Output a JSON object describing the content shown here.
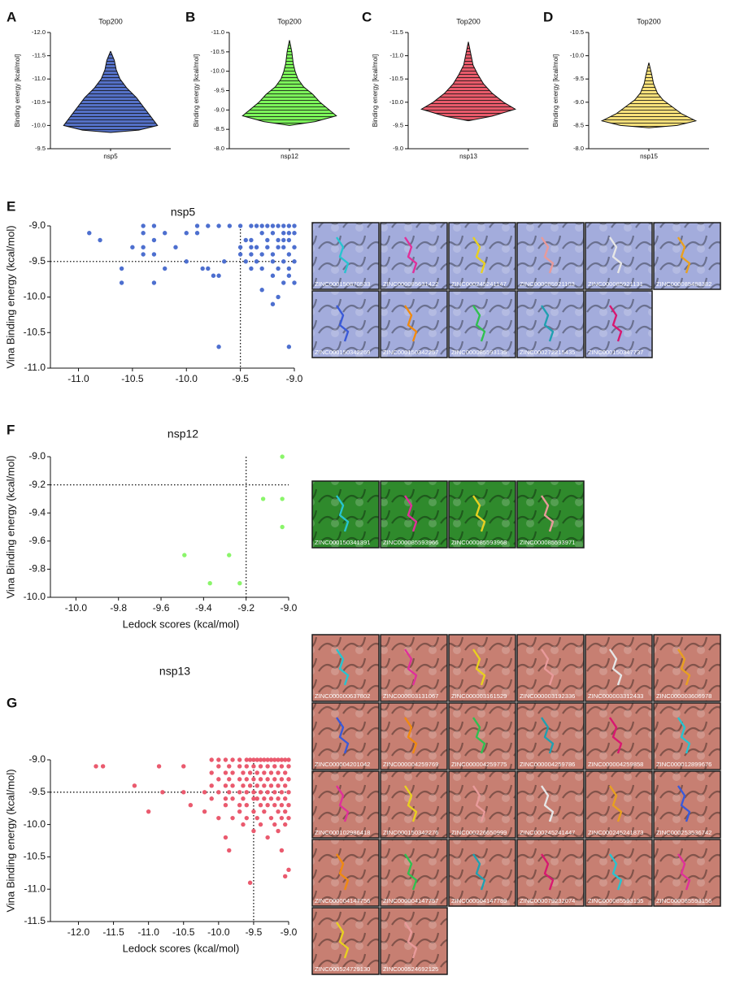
{
  "chart_data": [
    {
      "type": "violin",
      "panel": "A",
      "title": "Top200",
      "ylabel": "Binding energy [kcal/mol]",
      "categories": [
        "nsp5"
      ],
      "color": "#5470c6",
      "levels": [
        -9.85,
        -9.9,
        -10.0,
        -10.2,
        -10.4,
        -10.6,
        -10.8,
        -11.0,
        -11.2,
        -11.4,
        -11.6
      ],
      "density": [
        0,
        0.6,
        1.0,
        0.85,
        0.7,
        0.55,
        0.35,
        0.2,
        0.12,
        0.08,
        0
      ],
      "ylim": [
        -9.5,
        -12
      ],
      "yticks": [
        {
          "value": -12,
          "label": "-12.0"
        },
        -11.5,
        {
          "value": -11,
          "label": "-11.0"
        },
        -10.5,
        {
          "value": -10,
          "label": "-10.0"
        },
        -9.5
      ]
    },
    {
      "type": "violin",
      "panel": "B",
      "title": "Top200",
      "ylabel": "Binding energy [kcal/mol]",
      "categories": [
        "nsp12"
      ],
      "color": "#7cf55a",
      "levels": [
        -8.6,
        -8.7,
        -8.85,
        -9.0,
        -9.2,
        -9.4,
        -9.6,
        -9.8,
        -10.0,
        -10.2,
        -10.5,
        -10.8
      ],
      "density": [
        0,
        0.55,
        1.0,
        0.85,
        0.65,
        0.5,
        0.3,
        0.18,
        0.12,
        0.08,
        0.05,
        0
      ],
      "ylim": [
        -8,
        -11
      ],
      "yticks": [
        {
          "value": -11,
          "label": "-11.0"
        },
        -10.5,
        {
          "value": -10,
          "label": "-10.0"
        },
        -9.5,
        {
          "value": -9,
          "label": "-9.0"
        },
        -8.5,
        {
          "value": -8,
          "label": "-8.0"
        }
      ]
    },
    {
      "type": "violin",
      "panel": "C",
      "title": "Top200",
      "ylabel": "Binding energy [kcal/mol]",
      "categories": [
        "nsp13"
      ],
      "color": "#e85a6a",
      "levels": [
        -9.6,
        -9.7,
        -9.85,
        -10.0,
        -10.2,
        -10.4,
        -10.6,
        -10.8,
        -11.0,
        -11.3
      ],
      "density": [
        0,
        0.5,
        1.0,
        0.75,
        0.5,
        0.32,
        0.2,
        0.1,
        0.06,
        0
      ],
      "ylim": [
        -9,
        -11.5
      ],
      "yticks": [
        -11.5,
        {
          "value": -11,
          "label": "-11.0"
        },
        -10.5,
        {
          "value": -10,
          "label": "-10.0"
        },
        -9.5,
        {
          "value": -9,
          "label": "-9.0"
        }
      ]
    },
    {
      "type": "violin",
      "panel": "D",
      "title": "Top200",
      "ylabel": "Binding energy [kcal/mol]",
      "categories": [
        "nsp15"
      ],
      "color": "#f7e07a",
      "levels": [
        -8.45,
        -8.5,
        -8.6,
        -8.75,
        -8.9,
        -9.05,
        -9.2,
        -9.4,
        -9.6,
        -9.85
      ],
      "density": [
        0,
        0.6,
        1.0,
        0.7,
        0.5,
        0.3,
        0.18,
        0.1,
        0.06,
        0
      ],
      "ylim": [
        -8,
        -10.5
      ],
      "yticks": [
        -10.5,
        {
          "value": -10,
          "label": "-10.0"
        },
        -9.5,
        {
          "value": -9,
          "label": "-9.0"
        },
        -8.5,
        {
          "value": -8,
          "label": "-8.0"
        }
      ]
    },
    {
      "type": "scatter",
      "panel": "E",
      "title": "nsp5",
      "ylabel": "Vina Binding energy (kcal/mol)",
      "color": "#4d6fcf",
      "xlim": [
        -11.26,
        -9
      ],
      "ylim": [
        -11,
        -9
      ],
      "hline": -9.5,
      "vline": -9.5,
      "xticks": [
        {
          "value": -11,
          "label": "-11.0"
        },
        -10.5,
        {
          "value": -10,
          "label": "-10.0"
        },
        -9.5,
        {
          "value": -9,
          "label": "-9.0"
        }
      ],
      "yticks": [
        {
          "value": -11,
          "label": "-11.0"
        },
        -10.5,
        {
          "value": -10,
          "label": "-10.0"
        },
        -9.5,
        {
          "value": -9,
          "label": "-9.0"
        }
      ],
      "x": [
        -10.9,
        -10.8,
        -10.6,
        -10.6,
        -10.5,
        -10.4,
        -10.4,
        -10.4,
        -10.4,
        -10.3,
        -10.3,
        -10.3,
        -10.3,
        -10.2,
        -10.2,
        -10.1,
        -10.0,
        -10.0,
        -9.9,
        -9.9,
        -9.85,
        -9.8,
        -9.8,
        -9.75,
        -9.7,
        -9.7,
        -9.7,
        -9.65,
        -9.6,
        -9.5,
        -9.5,
        -9.5,
        -9.45,
        -9.45,
        -9.4,
        -9.4,
        -9.4,
        -9.4,
        -9.4,
        -9.35,
        -9.35,
        -9.35,
        -9.3,
        -9.3,
        -9.3,
        -9.3,
        -9.3,
        -9.25,
        -9.25,
        -9.25,
        -9.2,
        -9.2,
        -9.2,
        -9.2,
        -9.2,
        -9.2,
        -9.15,
        -9.15,
        -9.15,
        -9.15,
        -9.15,
        -9.1,
        -9.1,
        -9.1,
        -9.1,
        -9.1,
        -9.1,
        -9.05,
        -9.05,
        -9.05,
        -9.05,
        -9.05,
        -9.05,
        -9.05,
        -9.0,
        -9.0,
        -9.0,
        -9.0,
        -9.0
      ],
      "values": [
        -9.1,
        -9.2,
        -9.6,
        -9.8,
        -9.3,
        -9.0,
        -9.1,
        -9.3,
        -9.4,
        -9.0,
        -9.2,
        -9.4,
        -9.8,
        -9.1,
        -9.6,
        -9.3,
        -9.1,
        -9.5,
        -9.0,
        -9.1,
        -9.6,
        -9.0,
        -9.6,
        -9.7,
        -9.0,
        -9.7,
        -10.7,
        -9.5,
        -9.0,
        -9.0,
        -9.3,
        -9.4,
        -9.2,
        -9.5,
        -9.0,
        -9.2,
        -9.3,
        -9.4,
        -9.6,
        -9.0,
        -9.3,
        -9.5,
        -9.0,
        -9.1,
        -9.4,
        -9.6,
        -9.9,
        -9.0,
        -9.2,
        -9.3,
        -9.0,
        -9.1,
        -9.4,
        -9.5,
        -9.7,
        -10.1,
        -9.0,
        -9.2,
        -9.3,
        -9.6,
        -10.0,
        -9.0,
        -9.1,
        -9.2,
        -9.3,
        -9.5,
        -9.8,
        -9.0,
        -9.1,
        -9.2,
        -9.4,
        -9.6,
        -9.7,
        -10.7,
        -9.0,
        -9.1,
        -9.3,
        -9.5,
        -9.8
      ]
    },
    {
      "type": "scatter",
      "panel": "F",
      "title": "nsp12",
      "ylabel": "Vina Binding energy (kcal/mol)",
      "xlabel": "Ledock scores (kcal/mol)",
      "color": "#8af56a",
      "xlim": [
        -10.12,
        -9
      ],
      "ylim": [
        -10,
        -9
      ],
      "hline": -9.2,
      "vline": -9.2,
      "xticks": [
        {
          "value": -10,
          "label": "-10.0"
        },
        -9.8,
        -9.6,
        -9.4,
        -9.2,
        {
          "value": -9,
          "label": "-9.0"
        }
      ],
      "yticks": [
        {
          "value": -10,
          "label": "-10.0"
        },
        -9.8,
        -9.6,
        -9.4,
        -9.2,
        {
          "value": -9,
          "label": "-9.0"
        }
      ],
      "x": [
        -9.03,
        -9.12,
        -9.03,
        -9.03,
        -9.49,
        -9.28,
        -9.37,
        -9.23
      ],
      "values": [
        -9.0,
        -9.3,
        -9.3,
        -9.5,
        -9.7,
        -9.7,
        -9.9,
        -9.9
      ]
    },
    {
      "type": "scatter",
      "panel": "G",
      "title": "nsp13",
      "ylabel": "Vina Binding energy (kcal/mol)",
      "xlabel": "Ledock scores (kcal/mol)",
      "color": "#ea5a6e",
      "xlim": [
        -12.4,
        -9
      ],
      "ylim": [
        -11.5,
        -9
      ],
      "hline": -9.5,
      "vline": -9.5,
      "xticks": [
        {
          "value": -12,
          "label": "-12.0"
        },
        -11.5,
        {
          "value": -11,
          "label": "-11.0"
        },
        -10.5,
        {
          "value": -10,
          "label": "-10.0"
        },
        -9.5,
        {
          "value": -9,
          "label": "-9.0"
        }
      ],
      "yticks": [
        -11.5,
        {
          "value": -11,
          "label": "-11.0"
        },
        -10.5,
        {
          "value": -10,
          "label": "-10.0"
        },
        -9.5,
        {
          "value": -9,
          "label": "-9.0"
        }
      ],
      "x": [
        -11.75,
        -11.65,
        -11.2,
        -11.0,
        -10.85,
        -10.8,
        -10.5,
        -10.5,
        -10.4,
        -10.2,
        -10.2,
        -10.1,
        -10.1,
        -10.1,
        -10.1,
        -10.0,
        -10.0,
        -10.0,
        -10.0,
        -10.0,
        -9.9,
        -9.9,
        -9.9,
        -9.9,
        -9.9,
        -9.9,
        -9.85,
        -9.85,
        -9.85,
        -9.85,
        -9.8,
        -9.8,
        -9.8,
        -9.8,
        -9.8,
        -9.7,
        -9.7,
        -9.7,
        -9.7,
        -9.7,
        -9.7,
        -9.65,
        -9.65,
        -9.65,
        -9.65,
        -9.6,
        -9.6,
        -9.6,
        -9.6,
        -9.6,
        -9.6,
        -9.55,
        -9.55,
        -9.55,
        -9.55,
        -9.5,
        -9.5,
        -9.5,
        -9.5,
        -9.5,
        -9.5,
        -9.5,
        -9.45,
        -9.45,
        -9.45,
        -9.45,
        -9.45,
        -9.4,
        -9.4,
        -9.4,
        -9.4,
        -9.4,
        -9.4,
        -9.35,
        -9.35,
        -9.35,
        -9.35,
        -9.35,
        -9.3,
        -9.3,
        -9.3,
        -9.3,
        -9.3,
        -9.3,
        -9.25,
        -9.25,
        -9.25,
        -9.25,
        -9.25,
        -9.2,
        -9.2,
        -9.2,
        -9.2,
        -9.2,
        -9.2,
        -9.15,
        -9.15,
        -9.15,
        -9.15,
        -9.15,
        -9.15,
        -9.1,
        -9.1,
        -9.1,
        -9.1,
        -9.1,
        -9.1,
        -9.1,
        -9.05,
        -9.05,
        -9.05,
        -9.05,
        -9.05,
        -9.05,
        -9.05,
        -9.0,
        -9.0,
        -9.0,
        -9.0,
        -9.0,
        -9.0,
        -9.0
      ],
      "values": [
        -9.1,
        -9.1,
        -9.4,
        -9.8,
        -9.1,
        -9.5,
        -9.1,
        -9.5,
        -9.7,
        -9.5,
        -9.8,
        -9.0,
        -9.2,
        -9.4,
        -9.6,
        -9.0,
        -9.1,
        -9.3,
        -9.5,
        -9.9,
        -9.0,
        -9.2,
        -9.4,
        -9.6,
        -9.7,
        -10.2,
        -9.1,
        -9.3,
        -9.5,
        -10.4,
        -9.0,
        -9.2,
        -9.4,
        -9.6,
        -9.9,
        -9.0,
        -9.1,
        -9.3,
        -9.5,
        -9.7,
        -9.8,
        -9.2,
        -9.4,
        -9.6,
        -10.0,
        -9.0,
        -9.1,
        -9.3,
        -9.5,
        -9.7,
        -9.9,
        -9.0,
        -9.2,
        -9.4,
        -10.9,
        -9.0,
        -9.1,
        -9.3,
        -9.5,
        -9.6,
        -9.8,
        -10.1,
        -9.0,
        -9.2,
        -9.4,
        -9.6,
        -9.9,
        -9.0,
        -9.1,
        -9.3,
        -9.5,
        -9.7,
        -10.0,
        -9.0,
        -9.2,
        -9.4,
        -9.6,
        -9.8,
        -9.0,
        -9.1,
        -9.3,
        -9.5,
        -9.7,
        -10.2,
        -9.0,
        -9.2,
        -9.4,
        -9.6,
        -9.9,
        -9.0,
        -9.1,
        -9.3,
        -9.5,
        -9.7,
        -10.0,
        -9.0,
        -9.2,
        -9.4,
        -9.6,
        -9.8,
        -10.1,
        -9.0,
        -9.1,
        -9.3,
        -9.5,
        -9.7,
        -9.9,
        -10.4,
        -9.0,
        -9.2,
        -9.4,
        -9.6,
        -9.8,
        -10.0,
        -10.8,
        -9.0,
        -9.1,
        -9.3,
        -9.5,
        -9.7,
        -9.9,
        -10.7
      ]
    }
  ],
  "galleries": [
    {
      "color": "#a3acdc",
      "labels": [
        "ZINC000150870533",
        "ZINC000085631422",
        "ZINC000245241147",
        "ZINC000085921103",
        "ZINC000085921131",
        "ZINC000085488382",
        "ZINC000150342269",
        "ZINC000150342257",
        "ZINC000085593135",
        "ZINC000272215435",
        "ZINC000150347737"
      ]
    },
    {
      "color": "#2f8a2c",
      "labels": [
        "ZINC000150341391",
        "ZINC000085593966",
        "ZINC000085593968",
        "ZINC000085593971"
      ]
    },
    {
      "color": "#c77f72",
      "labels": [
        "ZINC000000637802",
        "ZINC000003131067",
        "ZINC000003161529",
        "ZINC000003192336",
        "ZINC000003312433",
        "ZINC000003606978",
        "ZINC000004201042",
        "ZINC000004259769",
        "ZINC000004259775",
        "ZINC000004259786",
        "ZINC000004259858",
        "ZINC000012899676",
        "ZINC000102986418",
        "ZINC000150342276",
        "ZINC000226650999",
        "ZINC000245241447",
        "ZINC000245241873",
        "ZINC000253536742",
        "ZINC000004147756",
        "ZINC000004147757",
        "ZINC000004147789",
        "ZINC000079232074",
        "ZINC000085593135",
        "ZINC000085593156",
        "ZINC000524729130",
        "ZINC000524692125"
      ]
    }
  ]
}
